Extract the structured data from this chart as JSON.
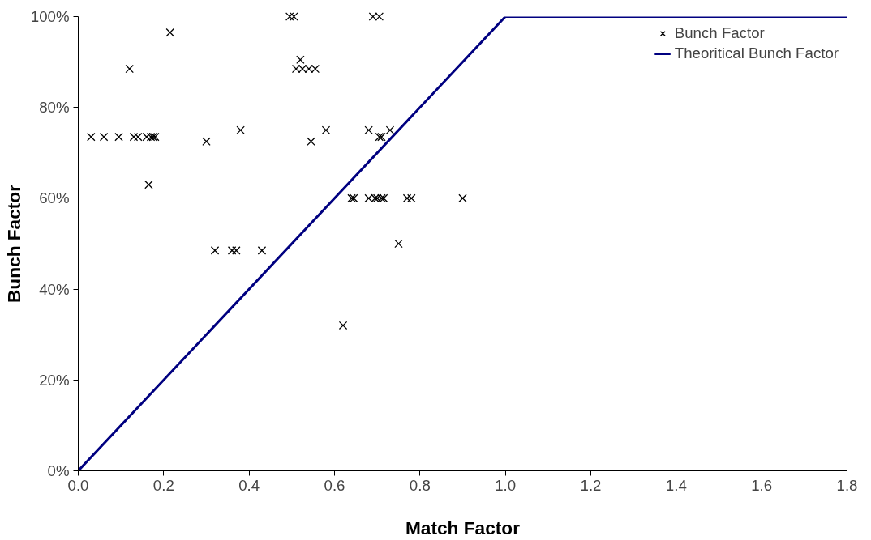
{
  "chart_data": {
    "type": "scatter",
    "xlabel": "Match Factor",
    "ylabel": "Bunch Factor",
    "legend": "top right",
    "grid": false,
    "xlim": [
      0,
      1.8
    ],
    "xticks": [
      {
        "value": 0,
        "label": "0.0"
      },
      {
        "value": 0.2,
        "label": "0.2"
      },
      {
        "value": 0.4,
        "label": "0.4"
      },
      {
        "value": 0.6,
        "label": "0.6"
      },
      {
        "value": 0.8,
        "label": "0.8"
      },
      {
        "value": 1,
        "label": "1.0"
      },
      {
        "value": 1.2,
        "label": "1.2"
      },
      {
        "value": 1.4,
        "label": "1.4"
      },
      {
        "value": 1.6,
        "label": "1.6"
      },
      {
        "value": 1.8,
        "label": "1.8"
      }
    ],
    "ylim": [
      0,
      100
    ],
    "yticks": [
      {
        "value": 0,
        "label": "0%"
      },
      {
        "value": 20,
        "label": "20%"
      },
      {
        "value": 40,
        "label": "40%"
      },
      {
        "value": 60,
        "label": "60%"
      },
      {
        "value": 80,
        "label": "80%"
      },
      {
        "value": 100,
        "label": "100%"
      }
    ],
    "series": [
      {
        "name": "Bunch Factor",
        "marker": "cross",
        "color": "#000000",
        "x": [
          0.03,
          0.06,
          0.095,
          0.13,
          0.14,
          0.16,
          0.17,
          0.175,
          0.18,
          0.12,
          0.215,
          0.165,
          0.3,
          0.38,
          0.32,
          0.36,
          0.37,
          0.43,
          0.495,
          0.505,
          0.52,
          0.51,
          0.525,
          0.54,
          0.555,
          0.545,
          0.58,
          0.62,
          0.64,
          0.645,
          0.68,
          0.68,
          0.695,
          0.7,
          0.71,
          0.715,
          0.705,
          0.71,
          0.73,
          0.75,
          0.77,
          0.78,
          0.9,
          0.69,
          0.705
        ],
        "values": [
          73.5,
          73.5,
          73.5,
          73.5,
          73.5,
          73.5,
          73.5,
          73.5,
          73.5,
          88.5,
          96.5,
          63,
          72.5,
          75,
          48.5,
          48.5,
          48.5,
          48.5,
          100,
          100,
          90.5,
          88.5,
          88.5,
          88.5,
          88.5,
          72.5,
          75,
          32,
          60,
          60,
          75,
          60,
          60,
          60,
          60,
          60,
          73.5,
          73.5,
          75,
          50,
          60,
          60,
          60,
          100,
          100
        ]
      },
      {
        "name": "Theoritical Bunch Factor",
        "type": "line",
        "line_style": "solid",
        "color": "#000080",
        "x": [
          0,
          1,
          1.8
        ],
        "values": [
          0,
          100,
          100
        ]
      }
    ]
  }
}
